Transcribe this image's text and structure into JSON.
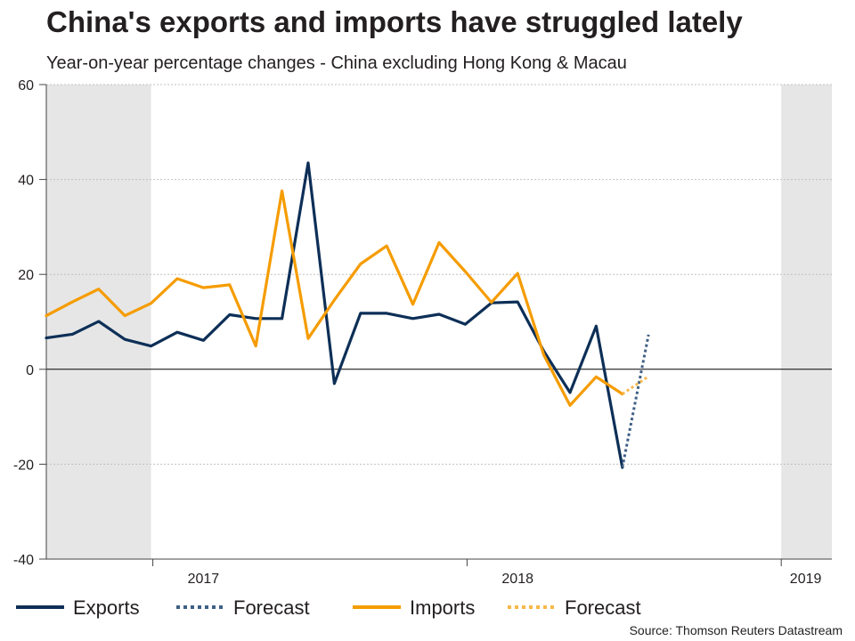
{
  "title": "China's exports and imports have struggled lately",
  "subtitle": "Year-on-year percentage changes - China excluding Hong Kong & Macau",
  "source": "Source: Thomson Reuters Datastream",
  "colors": {
    "exports": "#0d2f57",
    "imports": "#f59c00",
    "exports_forecast": "#3f5f86",
    "imports_forecast": "#f7b84a",
    "shade": "#e6e6e6",
    "grid": "#c0c0c0",
    "zero_line": "#000000"
  },
  "chart_data": {
    "type": "line",
    "title": "China's exports and imports have struggled lately",
    "subtitle": "Year-on-year percentage changes - China excluding Hong Kong & Macau",
    "xlabel": "",
    "ylabel": "",
    "ylim": [
      -40,
      60
    ],
    "yticks": [
      -40,
      -20,
      0,
      20,
      40,
      60
    ],
    "grid": true,
    "legend_position": "bottom",
    "x": [
      "2016-09",
      "2016-10",
      "2016-11",
      "2016-12",
      "2017-01",
      "2017-02",
      "2017-03",
      "2017-04",
      "2017-05",
      "2017-06",
      "2017-07",
      "2017-08",
      "2017-09",
      "2017-10",
      "2017-11",
      "2017-12",
      "2018-01",
      "2018-02",
      "2018-03",
      "2018-04",
      "2018-05",
      "2018-06",
      "2018-07",
      "2018-08",
      "2018-09",
      "2018-10",
      "2018-11",
      "2018-12",
      "2019-01",
      "2019-02",
      "2019-03"
    ],
    "x_year_labels": [
      {
        "label": "2017",
        "month": "2017-03"
      },
      {
        "label": "2018",
        "month": "2018-03"
      },
      {
        "label": "2019",
        "month": "2019-02"
      }
    ],
    "x_dividers": [
      "2017-01",
      "2018-01",
      "2019-01"
    ],
    "shaded_periods": [
      {
        "start": "2016-09",
        "end": "2017-01"
      },
      {
        "start": "2019-01",
        "end": "2019-03"
      }
    ],
    "series": [
      {
        "name": "Exports",
        "style": "solid",
        "color": "#0d2f57",
        "points": [
          [
            "2016-09",
            6.6
          ],
          [
            "2016-10",
            7.4
          ],
          [
            "2016-11",
            10.1
          ],
          [
            "2016-12",
            6.3
          ],
          [
            "2017-01",
            4.9
          ],
          [
            "2017-02",
            7.8
          ],
          [
            "2017-03",
            6.1
          ],
          [
            "2017-04",
            11.5
          ],
          [
            "2017-05",
            10.7
          ],
          [
            "2017-06",
            10.7
          ],
          [
            "2017-07",
            43.5
          ],
          [
            "2017-08",
            -3.0
          ],
          [
            "2017-09",
            11.8
          ],
          [
            "2017-10",
            11.8
          ],
          [
            "2017-11",
            10.7
          ],
          [
            "2017-12",
            11.6
          ],
          [
            "2018-01",
            9.5
          ],
          [
            "2018-02",
            14.0
          ],
          [
            "2018-03",
            14.2
          ],
          [
            "2018-04",
            3.8
          ],
          [
            "2018-05",
            -4.9
          ],
          [
            "2018-06",
            9.1
          ],
          [
            "2018-07",
            -20.7
          ]
        ]
      },
      {
        "name": "Forecast",
        "style": "dotted",
        "color": "#3f5f86",
        "points": [
          [
            "2018-07",
            -20.7
          ],
          [
            "2018-08",
            7.3
          ]
        ]
      },
      {
        "name": "Imports",
        "style": "solid",
        "color": "#f59c00",
        "points": [
          [
            "2016-09",
            11.3
          ],
          [
            "2016-10",
            14.2
          ],
          [
            "2016-11",
            16.9
          ],
          [
            "2016-12",
            11.3
          ],
          [
            "2017-01",
            13.9
          ],
          [
            "2017-02",
            19.1
          ],
          [
            "2017-03",
            17.2
          ],
          [
            "2017-04",
            17.8
          ],
          [
            "2017-05",
            4.9
          ],
          [
            "2017-06",
            37.6
          ],
          [
            "2017-07",
            6.5
          ],
          [
            "2017-08",
            14.6
          ],
          [
            "2017-09",
            22.2
          ],
          [
            "2017-10",
            26.0
          ],
          [
            "2017-11",
            13.7
          ],
          [
            "2017-12",
            26.7
          ],
          [
            "2018-01",
            20.6
          ],
          [
            "2018-02",
            14.1
          ],
          [
            "2018-03",
            20.2
          ],
          [
            "2018-04",
            3.0
          ],
          [
            "2018-05",
            -7.6
          ],
          [
            "2018-06",
            -1.6
          ],
          [
            "2018-07",
            -5.2
          ]
        ]
      },
      {
        "name": "Forecast",
        "style": "dotted",
        "color": "#f7b84a",
        "points": [
          [
            "2018-07",
            -5.2
          ],
          [
            "2018-08",
            -1.5
          ]
        ]
      }
    ]
  },
  "legend": [
    {
      "label": "Exports",
      "style": "solid",
      "color": "#0d2f57"
    },
    {
      "label": "Forecast",
      "style": "dotted",
      "color": "#3f5f86"
    },
    {
      "label": "Imports",
      "style": "solid",
      "color": "#f59c00"
    },
    {
      "label": "Forecast",
      "style": "dotted",
      "color": "#f7b84a"
    }
  ]
}
